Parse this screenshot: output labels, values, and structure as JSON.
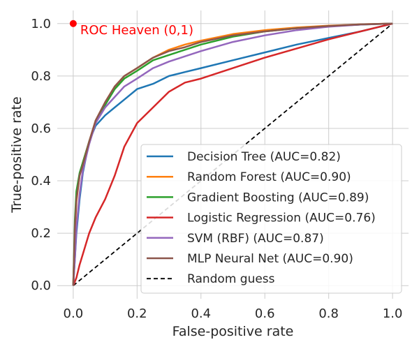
{
  "chart_data": {
    "type": "line",
    "title": "",
    "xlabel": "False-positive rate",
    "ylabel": "True-positive rate",
    "xlim": [
      -0.05,
      1.05
    ],
    "ylim": [
      -0.05,
      1.05
    ],
    "xticks": [
      "0.0",
      "0.2",
      "0.4",
      "0.6",
      "0.8",
      "1.0"
    ],
    "yticks": [
      "0.0",
      "0.2",
      "0.4",
      "0.6",
      "0.8",
      "1.0"
    ],
    "grid": true,
    "legend_position": "lower-right",
    "annotation": {
      "text": "ROC Heaven (0,1)",
      "x": 0,
      "y": 1,
      "color": "#ff0000"
    },
    "series": [
      {
        "name": "Decision Tree (AUC=0.82)",
        "color": "#1f77b4",
        "x": [
          0,
          0.005,
          0.01,
          0.02,
          0.03,
          0.05,
          0.07,
          0.1,
          0.13,
          0.16,
          0.2,
          0.25,
          0.3,
          0.35,
          0.4,
          0.5,
          0.6,
          0.7,
          0.8,
          0.9,
          1.0
        ],
        "y": [
          0,
          0.1,
          0.2,
          0.33,
          0.43,
          0.55,
          0.61,
          0.65,
          0.68,
          0.71,
          0.75,
          0.77,
          0.8,
          0.815,
          0.83,
          0.86,
          0.89,
          0.92,
          0.945,
          0.97,
          1.0
        ]
      },
      {
        "name": "Random Forest (AUC=0.90)",
        "color": "#ff7f0e",
        "x": [
          0,
          0.005,
          0.01,
          0.02,
          0.03,
          0.05,
          0.07,
          0.1,
          0.13,
          0.16,
          0.2,
          0.25,
          0.3,
          0.35,
          0.4,
          0.5,
          0.6,
          0.7,
          0.8,
          0.9,
          1.0
        ],
        "y": [
          0,
          0.2,
          0.32,
          0.42,
          0.47,
          0.55,
          0.63,
          0.7,
          0.76,
          0.8,
          0.83,
          0.87,
          0.9,
          0.92,
          0.935,
          0.96,
          0.975,
          0.985,
          0.992,
          0.997,
          1.0
        ]
      },
      {
        "name": "Gradient Boosting (AUC=0.89)",
        "color": "#2ca02c",
        "x": [
          0,
          0.005,
          0.01,
          0.02,
          0.03,
          0.05,
          0.07,
          0.1,
          0.13,
          0.16,
          0.2,
          0.25,
          0.3,
          0.35,
          0.4,
          0.5,
          0.6,
          0.7,
          0.8,
          0.9,
          1.0
        ],
        "y": [
          0,
          0.25,
          0.36,
          0.43,
          0.47,
          0.55,
          0.62,
          0.69,
          0.75,
          0.79,
          0.82,
          0.86,
          0.88,
          0.9,
          0.92,
          0.95,
          0.97,
          0.982,
          0.99,
          0.996,
          1.0
        ]
      },
      {
        "name": "Logistic Regression (AUC=0.76)",
        "color": "#d62728",
        "x": [
          0,
          0.01,
          0.02,
          0.03,
          0.05,
          0.07,
          0.1,
          0.13,
          0.16,
          0.2,
          0.25,
          0.3,
          0.35,
          0.4,
          0.5,
          0.6,
          0.7,
          0.8,
          0.9,
          1.0
        ],
        "y": [
          0,
          0.03,
          0.08,
          0.12,
          0.2,
          0.26,
          0.33,
          0.42,
          0.53,
          0.62,
          0.68,
          0.74,
          0.775,
          0.79,
          0.83,
          0.87,
          0.905,
          0.94,
          0.97,
          1.0
        ]
      },
      {
        "name": "SVM (RBF) (AUC=0.87)",
        "color": "#9467bd",
        "x": [
          0,
          0.005,
          0.01,
          0.02,
          0.03,
          0.05,
          0.07,
          0.1,
          0.13,
          0.16,
          0.2,
          0.25,
          0.3,
          0.35,
          0.4,
          0.5,
          0.6,
          0.7,
          0.8,
          0.9,
          1.0
        ],
        "y": [
          0,
          0.1,
          0.22,
          0.35,
          0.44,
          0.54,
          0.62,
          0.68,
          0.72,
          0.76,
          0.79,
          0.83,
          0.855,
          0.875,
          0.895,
          0.93,
          0.955,
          0.975,
          0.988,
          0.996,
          1.0
        ]
      },
      {
        "name": "MLP Neural Net (AUC=0.90)",
        "color": "#8c564b",
        "x": [
          0,
          0.005,
          0.01,
          0.02,
          0.03,
          0.05,
          0.07,
          0.1,
          0.13,
          0.16,
          0.2,
          0.25,
          0.3,
          0.35,
          0.4,
          0.5,
          0.6,
          0.7,
          0.8,
          0.9,
          1.0
        ],
        "y": [
          0,
          0.22,
          0.33,
          0.42,
          0.46,
          0.55,
          0.63,
          0.7,
          0.76,
          0.8,
          0.83,
          0.87,
          0.895,
          0.91,
          0.93,
          0.955,
          0.97,
          0.982,
          0.991,
          0.997,
          1.0
        ]
      },
      {
        "name": "Random guess",
        "color": "#000000",
        "dashed": true,
        "x": [
          0,
          1
        ],
        "y": [
          0,
          1
        ]
      }
    ]
  }
}
